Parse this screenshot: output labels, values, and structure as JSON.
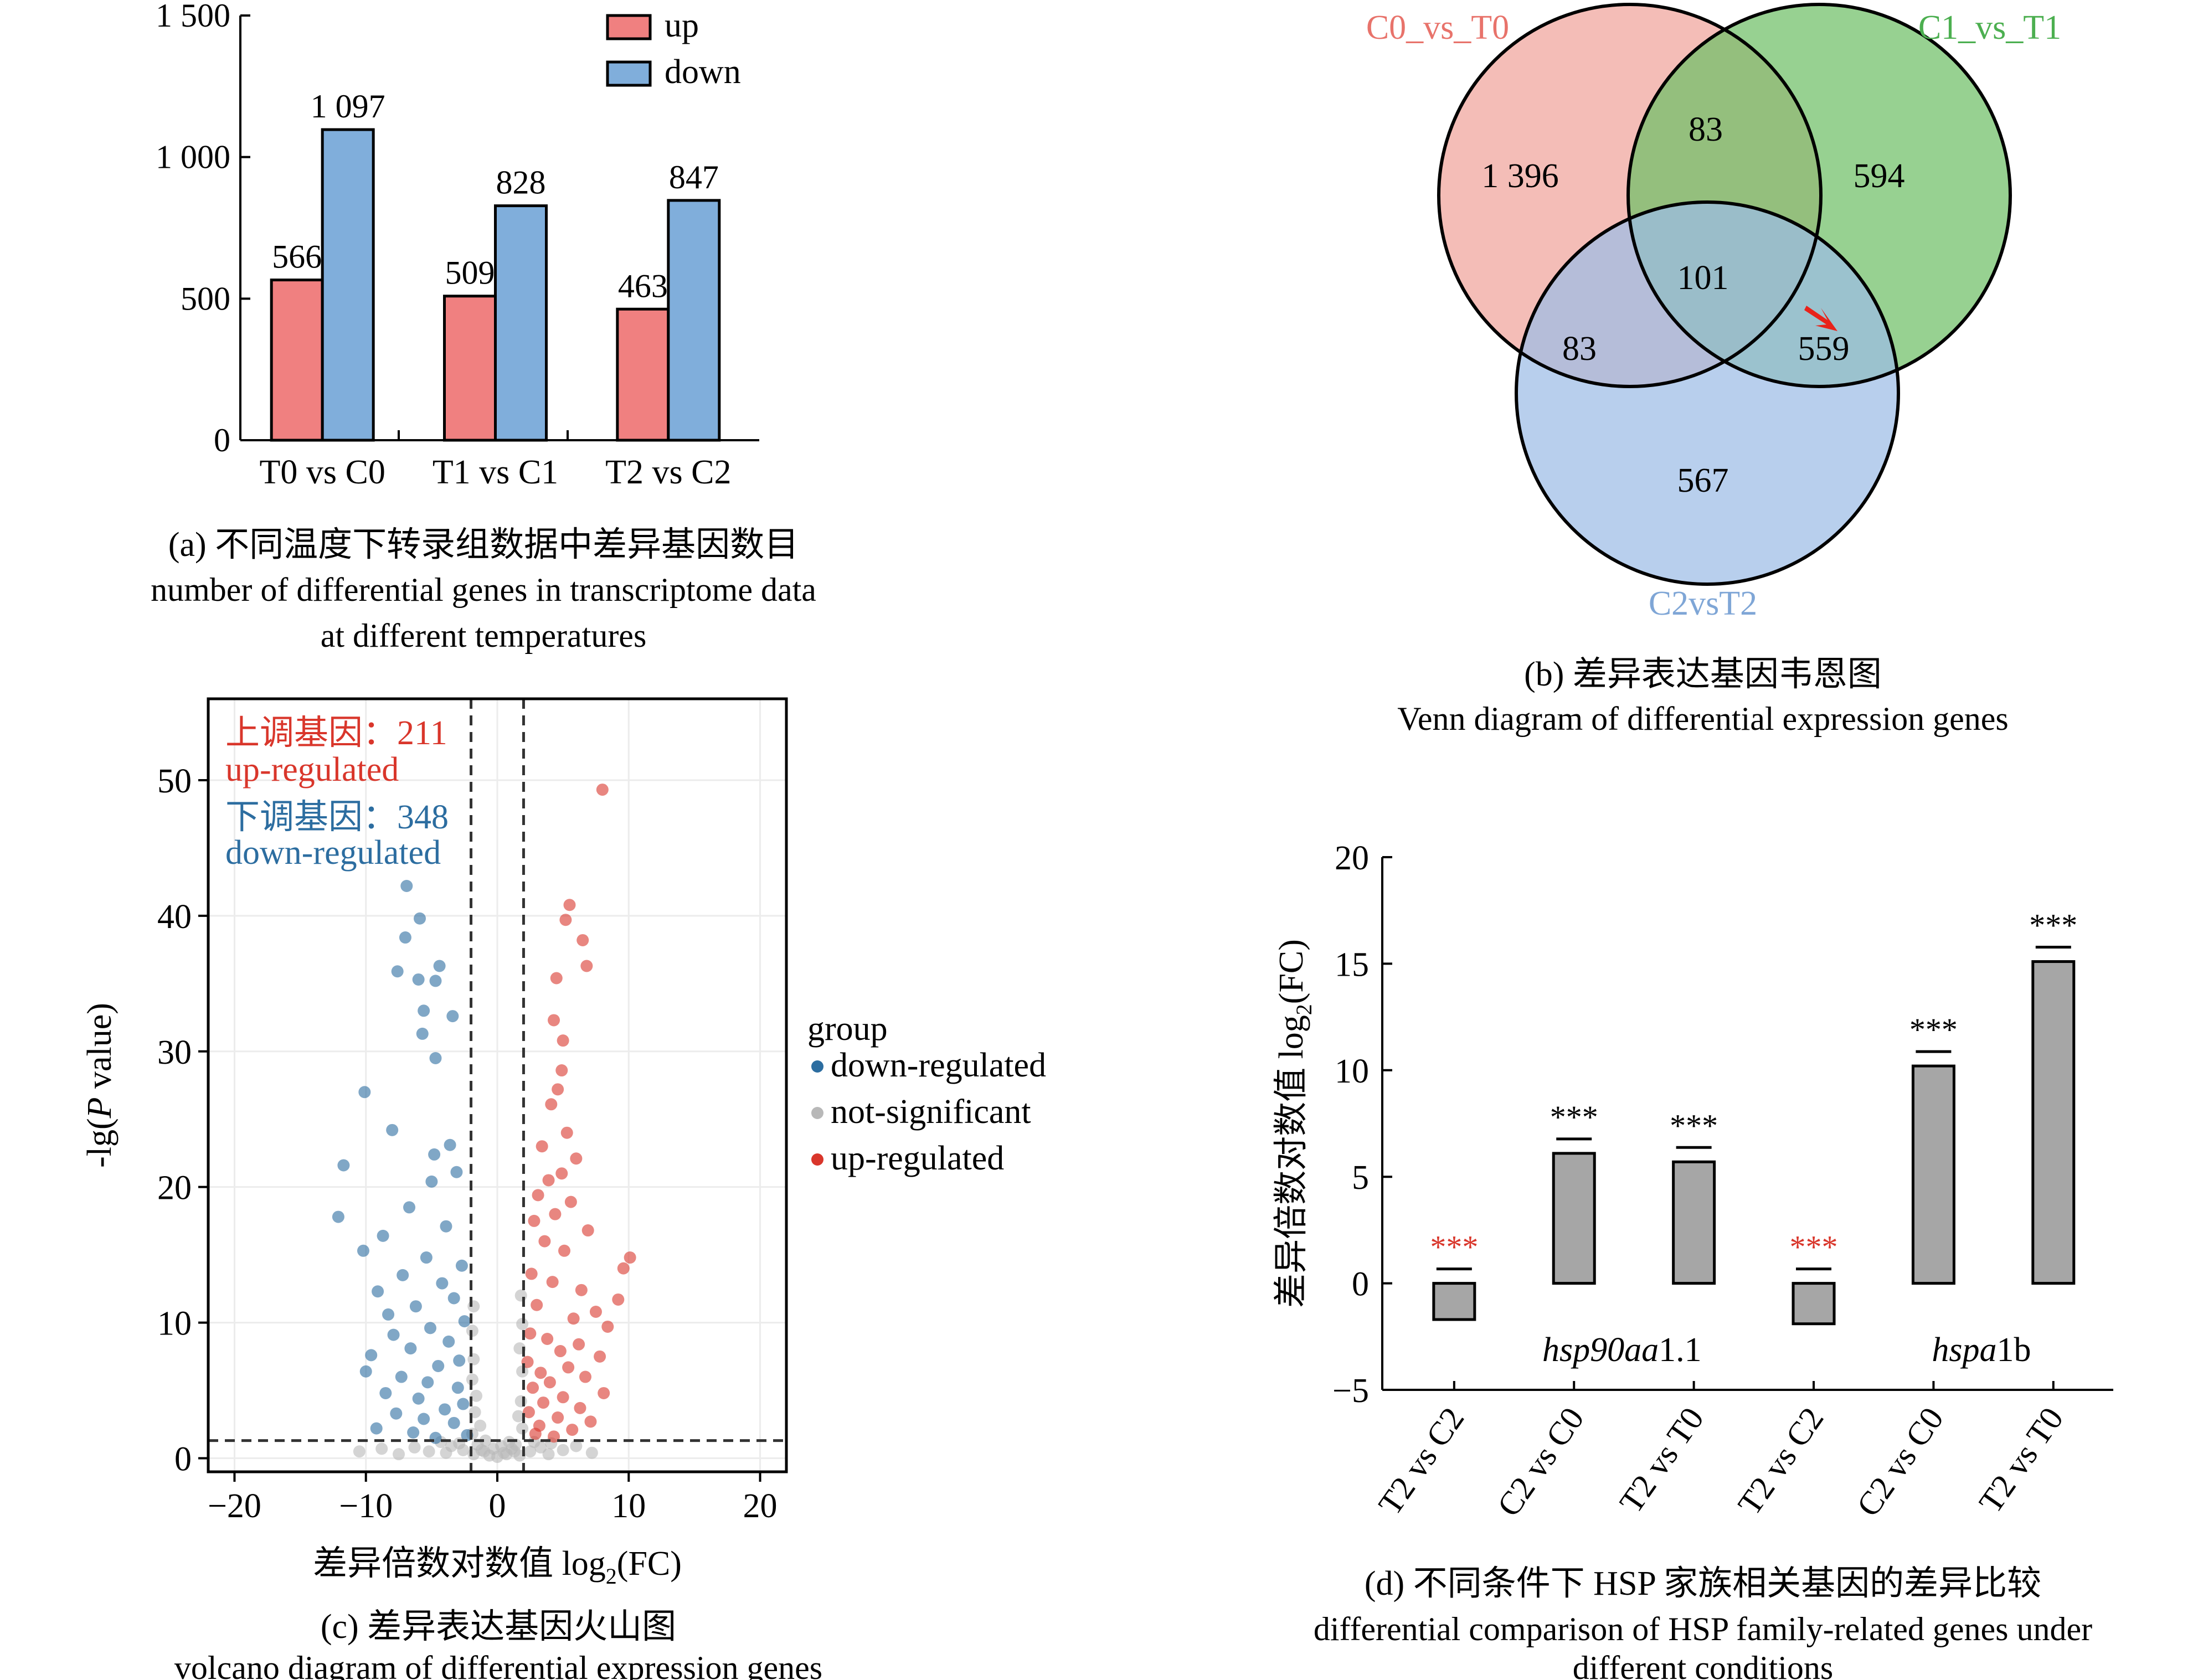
{
  "panel_a": {
    "caption_zh": "(a) 不同温度下转录组数据中差异基因数目",
    "caption_en_1": "number of differential genes in transcriptome data",
    "caption_en_2": "at different temperatures",
    "colors": {
      "up": "#f08080",
      "down": "#80aedb"
    }
  },
  "panel_b": {
    "caption_zh": "(b) 差异表达基因韦恩图",
    "caption_en": "Venn diagram of differential expression genes",
    "sets": [
      {
        "name": "C0_vs_T0",
        "label_color": "#e8736b",
        "fill": "#f0a49b"
      },
      {
        "name": "C1_vs_T1",
        "label_color": "#4caf50",
        "fill": "#6fbf66"
      },
      {
        "name": "C2vsT2",
        "label_color": "#7fa6d6",
        "fill": "#9dbde6"
      }
    ],
    "regions": [
      {
        "label": "1 396"
      },
      {
        "label": "83"
      },
      {
        "label": "594"
      },
      {
        "label": "101"
      },
      {
        "label": "83"
      },
      {
        "label": "559"
      },
      {
        "label": "567"
      }
    ],
    "arrow_color": "#e8221a"
  },
  "panel_c": {
    "caption_zh": "(c) 差异表达基因火山图",
    "caption_en": "volcano diagram of differential expression genes",
    "up_label_zh": "上调基因：211",
    "up_label_en": "up-regulated",
    "down_label_zh": "下调基因：348",
    "down_label_en": "down-regulated",
    "legend_title": "group",
    "legend": [
      {
        "name": "down-regulated",
        "color": "#2c6da0"
      },
      {
        "name": "not-significant",
        "color": "#b8b8b8"
      },
      {
        "name": "up-regulated",
        "color": "#d9362b"
      }
    ]
  },
  "panel_d": {
    "caption_zh": "(d) 不同条件下 HSP 家族相关基因的差异比较",
    "caption_en_1": "differential comparison of HSP family-related genes under",
    "caption_en_2": "different conditions",
    "gene_labels": [
      {
        "prefix": "hsp",
        "italic_part": "90aa",
        "suffix": "1.1"
      },
      {
        "prefix": "hspa",
        "italic_part": "",
        "suffix": "1b"
      }
    ],
    "bar_color": "#a6a6a6",
    "star_colors": [
      "#d9362b",
      "#000000",
      "#000000",
      "#d9362b",
      "#000000",
      "#000000"
    ]
  },
  "chart_data": [
    {
      "type": "bar",
      "categories": [
        "T0 vs C0",
        "T1 vs C1",
        "T2 vs C2"
      ],
      "series": [
        {
          "name": "up",
          "values": [
            566,
            509,
            463
          ]
        },
        {
          "name": "down",
          "values": [
            1097,
            828,
            847
          ]
        }
      ],
      "data_labels": [
        [
          "566",
          "509",
          "463"
        ],
        [
          "1 097",
          "828",
          "847"
        ]
      ],
      "ylim": [
        0,
        1500
      ],
      "yticks": [
        0,
        500,
        1000,
        1500
      ],
      "ytick_labels": [
        "0",
        "500",
        "1 000",
        "1 500"
      ],
      "legend_position": "top-right"
    },
    {
      "type": "scatter",
      "xlim": [
        -22,
        22
      ],
      "ylim": [
        -1,
        56
      ],
      "xticks": [
        -20,
        -10,
        0,
        10,
        20
      ],
      "xtick_labels": [
        "−20",
        "−10",
        "0",
        "10",
        "20"
      ],
      "yticks": [
        0,
        10,
        20,
        30,
        40,
        50
      ],
      "xlabel_zh": "差异倍数对数值",
      "xlabel_en": "log",
      "xlabel_sub": "2",
      "xlabel_tail": "(FC)",
      "ylabel_prefix": "-lg(",
      "ylabel_italic": "P",
      "ylabel_suffix": " value)",
      "thresholds": {
        "log2fc": [
          -2,
          2
        ],
        "neg_log_p": 1.3
      },
      "series": [
        {
          "name": "up-regulated",
          "points": [
            [
              8,
              49.3
            ],
            [
              5.5,
              40.8
            ],
            [
              5.2,
              39.7
            ],
            [
              6.5,
              38.2
            ],
            [
              6.8,
              36.3
            ],
            [
              4.5,
              35.4
            ],
            [
              4.3,
              32.3
            ],
            [
              5.0,
              30.8
            ],
            [
              4.9,
              28.6
            ],
            [
              4.6,
              27.2
            ],
            [
              4.1,
              26.1
            ],
            [
              5.3,
              24.0
            ],
            [
              3.4,
              23.0
            ],
            [
              6.0,
              22.1
            ],
            [
              4.9,
              21.0
            ],
            [
              3.9,
              20.5
            ],
            [
              3.1,
              19.4
            ],
            [
              5.6,
              18.9
            ],
            [
              4.4,
              18.0
            ],
            [
              2.8,
              17.5
            ],
            [
              6.9,
              16.8
            ],
            [
              3.6,
              16.0
            ],
            [
              5.1,
              15.3
            ],
            [
              10.1,
              14.8
            ],
            [
              9.6,
              14.0
            ],
            [
              2.6,
              13.6
            ],
            [
              4.2,
              13.0
            ],
            [
              6.4,
              12.4
            ],
            [
              9.2,
              11.7
            ],
            [
              3.0,
              11.3
            ],
            [
              7.5,
              10.8
            ],
            [
              5.8,
              10.3
            ],
            [
              8.4,
              9.7
            ],
            [
              2.5,
              9.2
            ],
            [
              3.8,
              8.8
            ],
            [
              6.2,
              8.4
            ],
            [
              4.8,
              7.9
            ],
            [
              7.8,
              7.5
            ],
            [
              2.3,
              7.1
            ],
            [
              5.4,
              6.7
            ],
            [
              3.3,
              6.3
            ],
            [
              6.7,
              6.0
            ],
            [
              4.0,
              5.6
            ],
            [
              2.7,
              5.2
            ],
            [
              8.1,
              4.8
            ],
            [
              5.0,
              4.5
            ],
            [
              3.5,
              4.1
            ],
            [
              6.3,
              3.7
            ],
            [
              2.4,
              3.4
            ],
            [
              4.6,
              3.0
            ],
            [
              7.1,
              2.7
            ],
            [
              3.2,
              2.4
            ],
            [
              5.7,
              2.1
            ],
            [
              2.9,
              1.8
            ],
            [
              4.3,
              1.6
            ]
          ]
        },
        {
          "name": "down-regulated",
          "points": [
            [
              -6.9,
              42.2
            ],
            [
              -5.9,
              39.8
            ],
            [
              -7.0,
              38.4
            ],
            [
              -4.4,
              36.3
            ],
            [
              -6.0,
              35.3
            ],
            [
              -7.6,
              35.9
            ],
            [
              -4.7,
              35.2
            ],
            [
              -5.6,
              33.0
            ],
            [
              -3.4,
              32.6
            ],
            [
              -5.7,
              31.3
            ],
            [
              -4.7,
              29.5
            ],
            [
              -10.1,
              27.0
            ],
            [
              -8.0,
              24.2
            ],
            [
              -3.6,
              23.1
            ],
            [
              -4.8,
              22.4
            ],
            [
              -11.7,
              21.6
            ],
            [
              -3.1,
              21.1
            ],
            [
              -5.0,
              20.4
            ],
            [
              -12.1,
              17.8
            ],
            [
              -6.7,
              18.5
            ],
            [
              -3.9,
              17.1
            ],
            [
              -8.7,
              16.4
            ],
            [
              -10.2,
              15.3
            ],
            [
              -5.4,
              14.8
            ],
            [
              -2.7,
              14.2
            ],
            [
              -7.2,
              13.5
            ],
            [
              -4.2,
              12.9
            ],
            [
              -9.1,
              12.3
            ],
            [
              -3.3,
              11.8
            ],
            [
              -6.2,
              11.2
            ],
            [
              -8.3,
              10.6
            ],
            [
              -2.5,
              10.1
            ],
            [
              -5.1,
              9.6
            ],
            [
              -7.9,
              9.1
            ],
            [
              -3.7,
              8.6
            ],
            [
              -6.6,
              8.1
            ],
            [
              -9.6,
              7.6
            ],
            [
              -2.9,
              7.2
            ],
            [
              -4.5,
              6.8
            ],
            [
              -10.0,
              6.4
            ],
            [
              -7.3,
              6.0
            ],
            [
              -5.3,
              5.6
            ],
            [
              -3.0,
              5.2
            ],
            [
              -8.5,
              4.8
            ],
            [
              -6.0,
              4.4
            ],
            [
              -2.6,
              4.0
            ],
            [
              -4.0,
              3.6
            ],
            [
              -7.7,
              3.3
            ],
            [
              -5.6,
              2.9
            ],
            [
              -3.3,
              2.6
            ],
            [
              -9.2,
              2.2
            ],
            [
              -6.4,
              1.9
            ],
            [
              -2.3,
              1.7
            ],
            [
              -4.7,
              1.5
            ]
          ]
        },
        {
          "name": "not-significant",
          "points": [
            [
              -1.8,
              0.3
            ],
            [
              -1.2,
              0.6
            ],
            [
              -0.6,
              0.2
            ],
            [
              0.0,
              0.1
            ],
            [
              0.5,
              0.4
            ],
            [
              1.1,
              0.7
            ],
            [
              1.7,
              0.2
            ],
            [
              -1.5,
              1.0
            ],
            [
              -0.9,
              1.3
            ],
            [
              0.3,
              0.9
            ],
            [
              0.9,
              1.2
            ],
            [
              1.4,
              1.0
            ],
            [
              -1.9,
              1.8
            ],
            [
              -1.3,
              2.4
            ],
            [
              1.9,
              2.2
            ],
            [
              1.6,
              3.1
            ],
            [
              -1.7,
              3.4
            ],
            [
              -1.0,
              0.5
            ],
            [
              0.7,
              0.3
            ],
            [
              -0.3,
              0.7
            ],
            [
              1.3,
              0.5
            ],
            [
              -1.6,
              4.6
            ],
            [
              1.8,
              4.2
            ],
            [
              -1.9,
              5.8
            ],
            [
              1.9,
              6.4
            ],
            [
              -1.8,
              7.3
            ],
            [
              1.7,
              8.1
            ],
            [
              -1.9,
              9.4
            ],
            [
              1.9,
              9.9
            ],
            [
              -1.8,
              11.2
            ],
            [
              1.8,
              12.0
            ],
            [
              2.5,
              0.5
            ],
            [
              3.3,
              0.8
            ],
            [
              4.1,
              1.1
            ],
            [
              5.0,
              0.6
            ],
            [
              6.0,
              0.9
            ],
            [
              7.2,
              0.4
            ],
            [
              -2.6,
              0.6
            ],
            [
              -3.5,
              0.9
            ],
            [
              -4.3,
              1.2
            ],
            [
              -5.2,
              0.5
            ],
            [
              -6.3,
              0.8
            ],
            [
              -7.5,
              0.3
            ],
            [
              -8.8,
              0.7
            ],
            [
              -10.5,
              0.5
            ],
            [
              2.8,
              1.2
            ],
            [
              -2.9,
              1.1
            ],
            [
              3.9,
              0.3
            ],
            [
              -3.9,
              0.4
            ]
          ]
        }
      ]
    },
    {
      "type": "bar",
      "categories": [
        "T2 vs C2",
        "C2 vs C0",
        "T2 vs T0",
        "T2 vs C2",
        "C2 vs C0",
        "T2 vs T0"
      ],
      "groups": [
        "hsp90aa1.1",
        "hspa1b"
      ],
      "values": [
        -1.7,
        6.1,
        5.7,
        -1.9,
        10.2,
        15.1
      ],
      "significance": [
        "***",
        "***",
        "***",
        "***",
        "***",
        "***"
      ],
      "ylim": [
        -5,
        20
      ],
      "yticks": [
        -5,
        0,
        5,
        10,
        15,
        20
      ],
      "ytick_labels": [
        "−5",
        "0",
        "5",
        "10",
        "15",
        "20"
      ],
      "ylabel_zh": "差异倍数对数值",
      "ylabel_en": "log",
      "ylabel_sub": "2",
      "ylabel_tail": "(FC)"
    }
  ]
}
